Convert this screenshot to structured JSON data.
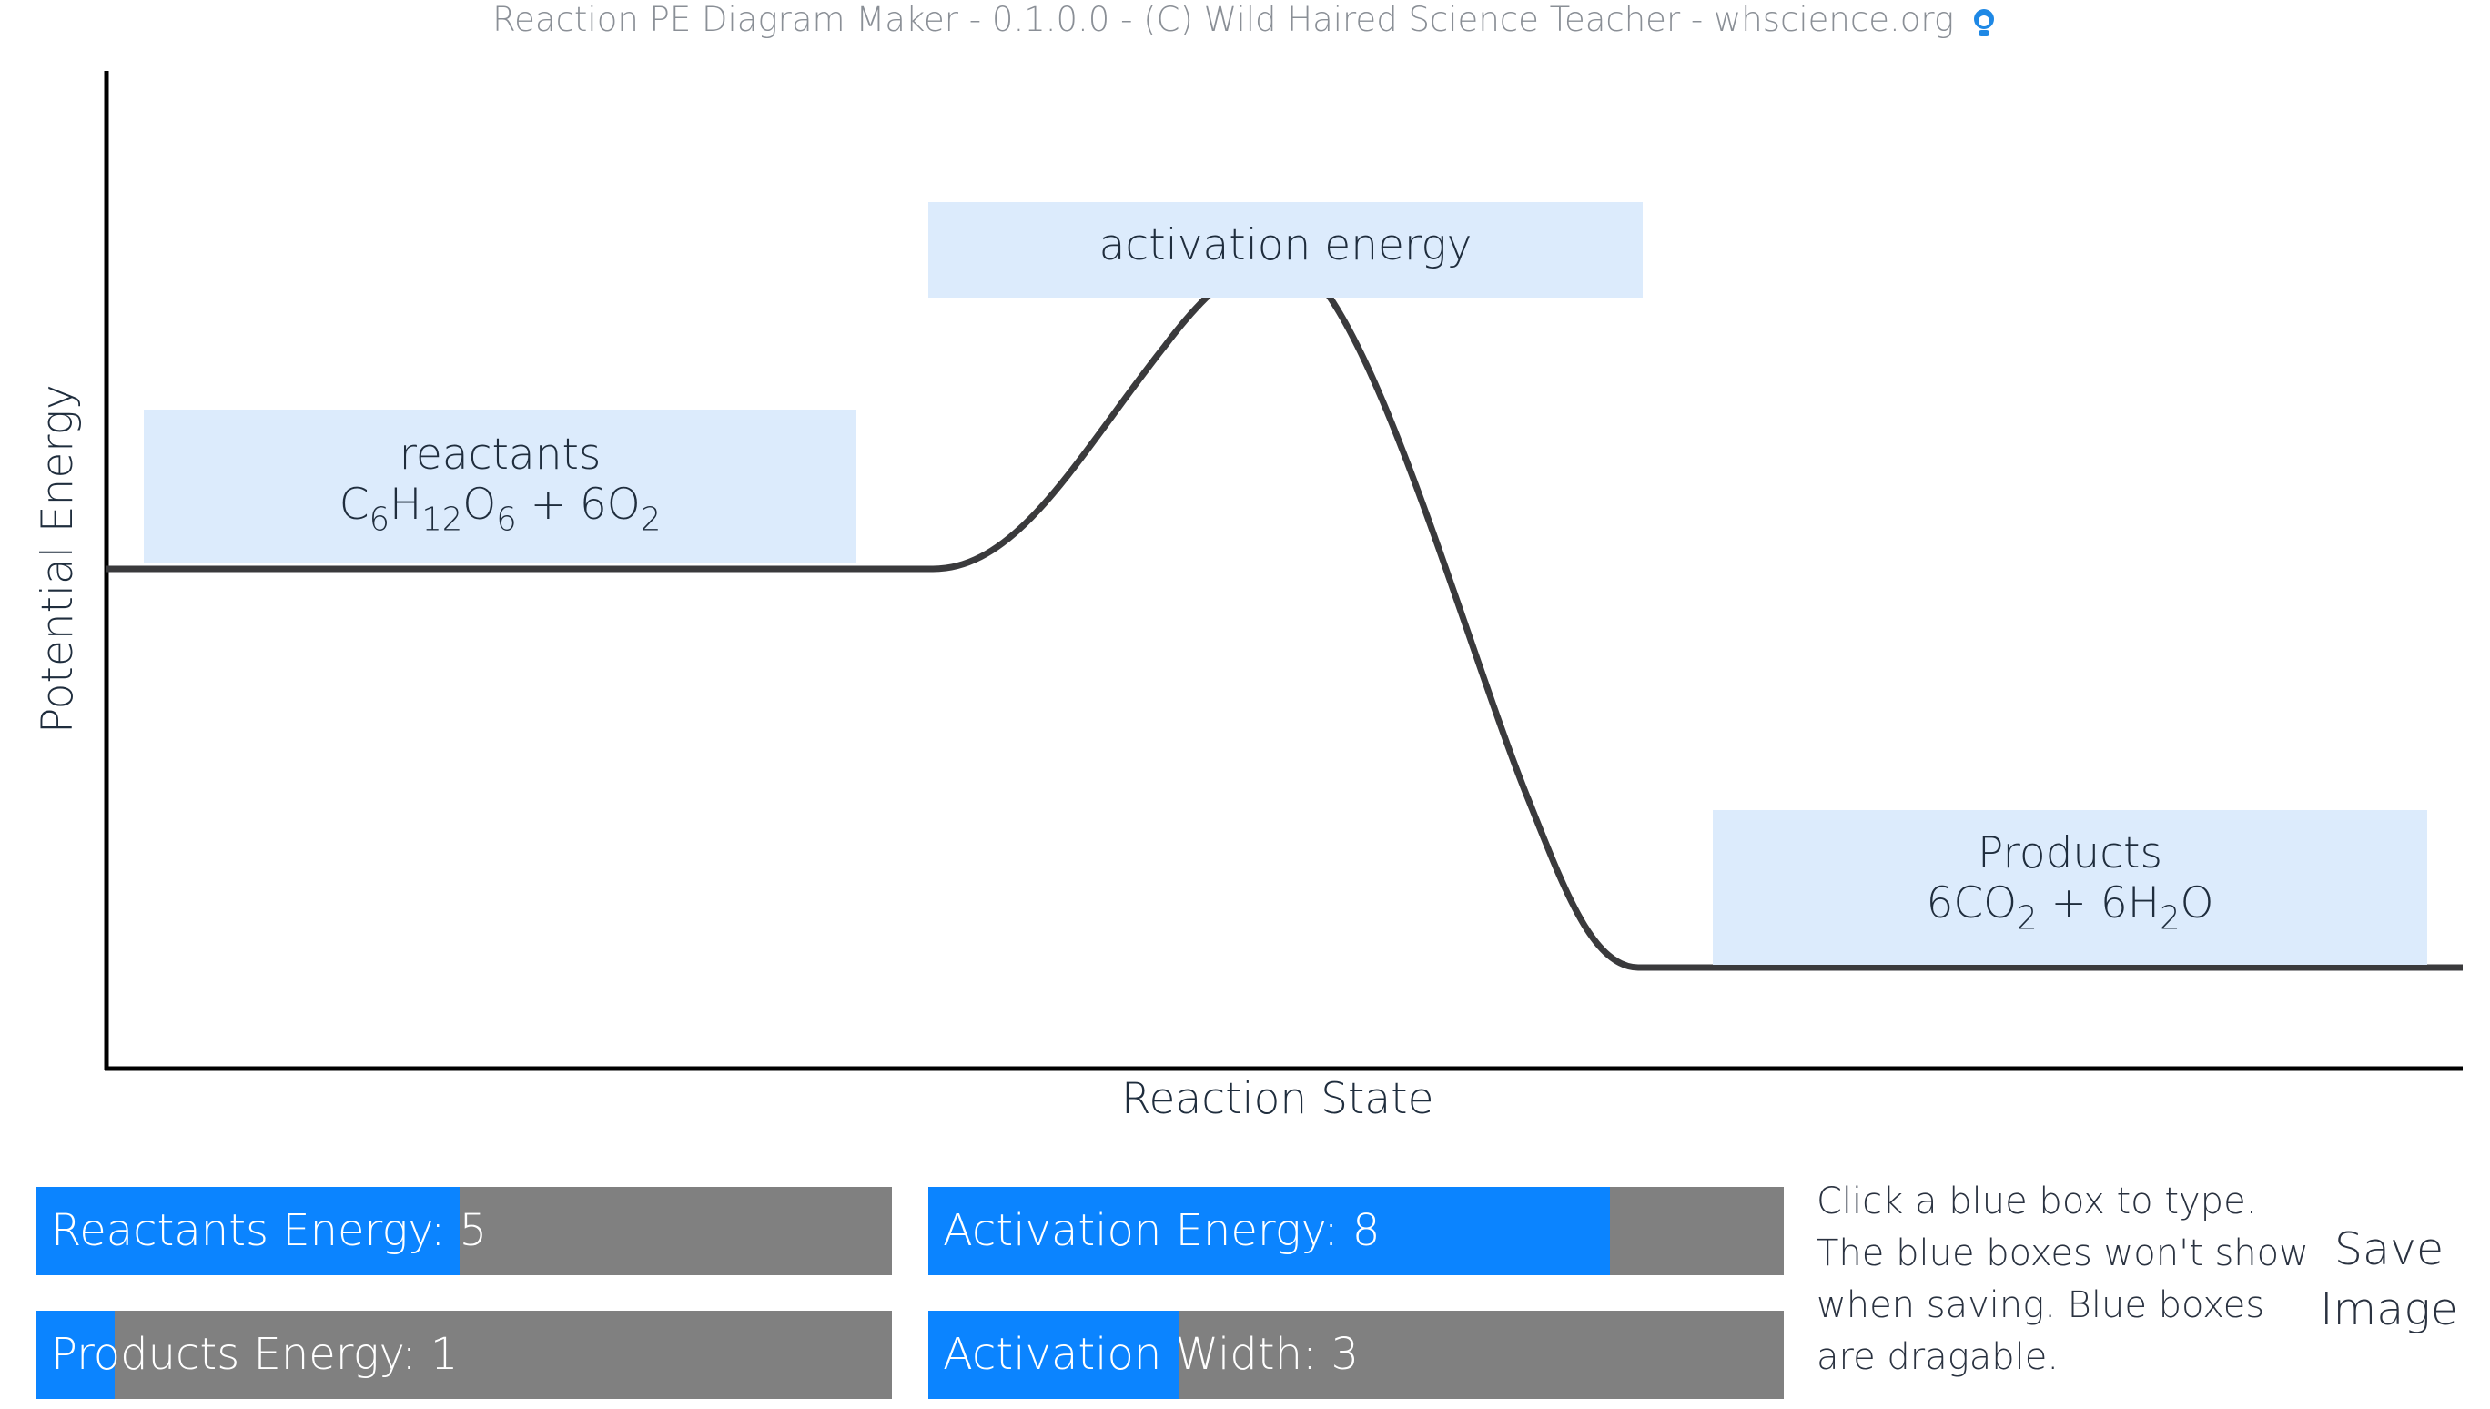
{
  "header": {
    "title": "Reaction PE Diagram Maker - 0.1.0.0 - (C) Wild Haired Science Teacher - whscience.org",
    "avatar_icon": "teacher-avatar-icon"
  },
  "diagram": {
    "ylabel": "Potential Energy",
    "xlabel": "Reaction State",
    "curve_color": "#3a3a3c",
    "box_color": "#dcebfc",
    "boxes": {
      "reactants": {
        "line1": "reactants",
        "formula": [
          "C",
          "6",
          "H",
          "12",
          "O",
          "6",
          " + 6O",
          "2"
        ]
      },
      "activation": {
        "line1": "activation energy"
      },
      "products": {
        "line1": "Products",
        "formula": [
          "6CO",
          "2",
          " +  6H",
          "2",
          "O"
        ]
      }
    }
  },
  "controls": {
    "accent": "#0b84ff",
    "track": "#808080",
    "sliders": [
      {
        "label": "Reactants Energy: 5",
        "fraction": 0.495
      },
      {
        "label": "Activation Energy: 8",
        "fraction": 0.797
      },
      {
        "label": "Products Energy: 1",
        "fraction": 0.092
      },
      {
        "label": "Activation Width: 3",
        "fraction": 0.293
      }
    ],
    "instructions": [
      "Click a blue box to type.",
      "The blue boxes won't show",
      "when saving. Blue boxes",
      "are dragable."
    ],
    "save_lines": [
      "Save",
      "Image"
    ]
  }
}
